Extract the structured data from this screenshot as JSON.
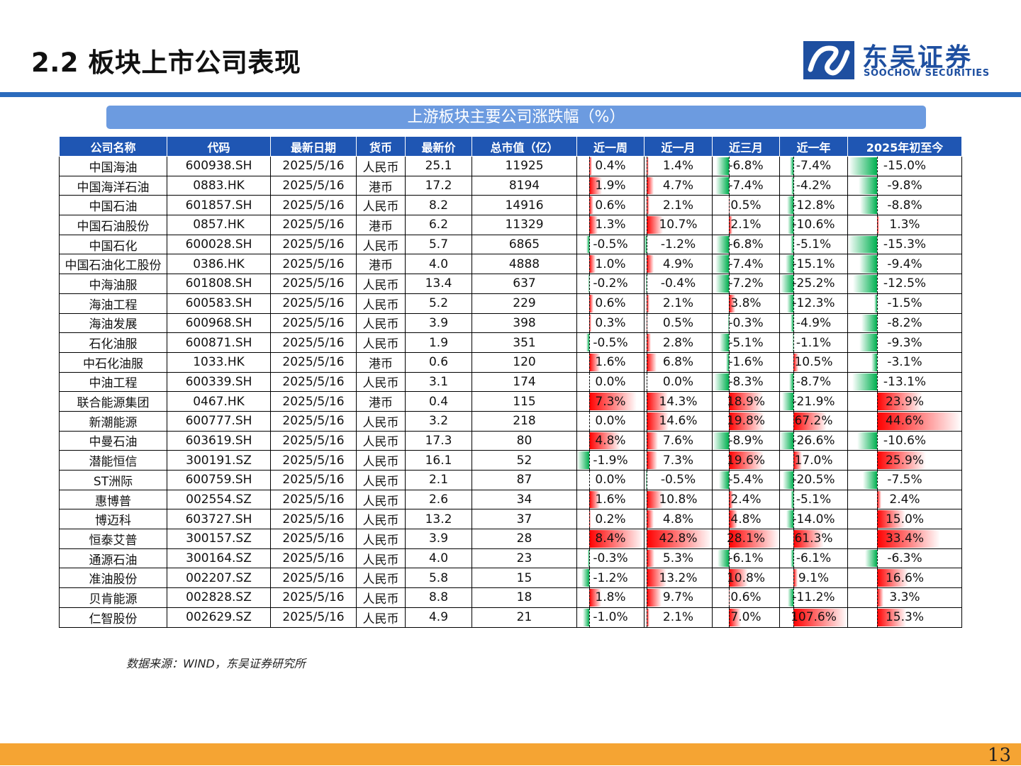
{
  "page": {
    "title": "2.2 板块上市公司表现",
    "logo_cn": "东吴证券",
    "logo_en": "SOOCHOW SECURITIES",
    "banner": "上游板块主要公司涨跌幅（%）",
    "source": "数据来源：WIND，东吴证券研究所",
    "page_number": "13"
  },
  "colors": {
    "header_bg": "#1f56b3",
    "banner_bg": "#6c9be0",
    "top_line": "#2b6bbd",
    "footer": "#f5a433",
    "positive_bar": "#ff0000",
    "negative_bar": "#00b050"
  },
  "table": {
    "headers": [
      "公司名称",
      "代码",
      "最新日期",
      "货币",
      "最新价",
      "总市值（亿）",
      "近一周",
      "近一月",
      "近三月",
      "近一年",
      "2025年初至今"
    ],
    "rows": [
      [
        "中国海油",
        "600938.SH",
        "2025/5/16",
        "人民币",
        "25.1",
        "11925",
        "0.4%",
        "1.4%",
        "-6.8%",
        "-7.4%",
        "-15.0%"
      ],
      [
        "中国海洋石油",
        "0883.HK",
        "2025/5/16",
        "港币",
        "17.2",
        "8194",
        "1.9%",
        "4.7%",
        "-7.4%",
        "-4.2%",
        "-9.8%"
      ],
      [
        "中国石油",
        "601857.SH",
        "2025/5/16",
        "人民币",
        "8.2",
        "14916",
        "0.6%",
        "2.1%",
        "0.5%",
        "-12.8%",
        "-8.8%"
      ],
      [
        "中国石油股份",
        "0857.HK",
        "2025/5/16",
        "港币",
        "6.2",
        "11329",
        "1.3%",
        "10.7%",
        "2.1%",
        "-10.6%",
        "1.3%"
      ],
      [
        "中国石化",
        "600028.SH",
        "2025/5/16",
        "人民币",
        "5.7",
        "6865",
        "-0.5%",
        "-1.2%",
        "-6.8%",
        "-5.1%",
        "-15.3%"
      ],
      [
        "中国石油化工股份",
        "0386.HK",
        "2025/5/16",
        "港币",
        "4.0",
        "4888",
        "1.0%",
        "4.9%",
        "-7.4%",
        "-15.1%",
        "-9.4%"
      ],
      [
        "中海油服",
        "601808.SH",
        "2025/5/16",
        "人民币",
        "13.4",
        "637",
        "-0.2%",
        "-0.4%",
        "-7.2%",
        "-25.2%",
        "-12.5%"
      ],
      [
        "海油工程",
        "600583.SH",
        "2025/5/16",
        "人民币",
        "5.2",
        "229",
        "0.6%",
        "2.1%",
        "3.8%",
        "-12.3%",
        "-1.5%"
      ],
      [
        "海油发展",
        "600968.SH",
        "2025/5/16",
        "人民币",
        "3.9",
        "398",
        "0.3%",
        "0.5%",
        "-0.3%",
        "-4.9%",
        "-8.2%"
      ],
      [
        "石化油服",
        "600871.SH",
        "2025/5/16",
        "人民币",
        "1.9",
        "351",
        "-0.5%",
        "2.8%",
        "-5.1%",
        "-1.1%",
        "-9.3%"
      ],
      [
        "中石化油服",
        "1033.HK",
        "2025/5/16",
        "港币",
        "0.6",
        "120",
        "1.6%",
        "6.8%",
        "-1.6%",
        "10.5%",
        "-3.1%"
      ],
      [
        "中油工程",
        "600339.SH",
        "2025/5/16",
        "人民币",
        "3.1",
        "174",
        "0.0%",
        "0.0%",
        "-8.3%",
        "-8.7%",
        "-13.1%"
      ],
      [
        "联合能源集团",
        "0467.HK",
        "2025/5/16",
        "港币",
        "0.4",
        "115",
        "7.3%",
        "14.3%",
        "18.9%",
        "-21.9%",
        "23.9%"
      ],
      [
        "新潮能源",
        "600777.SH",
        "2025/5/16",
        "人民币",
        "3.2",
        "218",
        "0.0%",
        "14.6%",
        "19.8%",
        "67.2%",
        "44.6%"
      ],
      [
        "中曼石油",
        "603619.SH",
        "2025/5/16",
        "人民币",
        "17.3",
        "80",
        "4.8%",
        "7.6%",
        "-8.9%",
        "-26.6%",
        "-10.6%"
      ],
      [
        "潜能恒信",
        "300191.SZ",
        "2025/5/16",
        "人民币",
        "16.1",
        "52",
        "-1.9%",
        "7.3%",
        "19.6%",
        "17.0%",
        "25.9%"
      ],
      [
        "ST洲际",
        "600759.SH",
        "2025/5/16",
        "人民币",
        "2.1",
        "87",
        "0.0%",
        "-0.5%",
        "-5.4%",
        "-20.5%",
        "-7.5%"
      ],
      [
        "惠博普",
        "002554.SZ",
        "2025/5/16",
        "人民币",
        "2.6",
        "34",
        "1.6%",
        "10.8%",
        "2.4%",
        "-5.1%",
        "2.4%"
      ],
      [
        "博迈科",
        "603727.SH",
        "2025/5/16",
        "人民币",
        "13.2",
        "37",
        "0.2%",
        "4.8%",
        "4.8%",
        "-14.0%",
        "15.0%"
      ],
      [
        "恒泰艾普",
        "300157.SZ",
        "2025/5/16",
        "人民币",
        "3.9",
        "28",
        "8.4%",
        "42.8%",
        "28.1%",
        "61.3%",
        "33.4%"
      ],
      [
        "通源石油",
        "300164.SZ",
        "2025/5/16",
        "人民币",
        "4.0",
        "23",
        "-0.3%",
        "5.3%",
        "-6.1%",
        "-6.1%",
        "-6.3%"
      ],
      [
        "准油股份",
        "002207.SZ",
        "2025/5/16",
        "人民币",
        "5.8",
        "15",
        "-1.2%",
        "13.2%",
        "10.8%",
        "9.1%",
        "16.6%"
      ],
      [
        "贝肯能源",
        "002828.SZ",
        "2025/5/16",
        "人民币",
        "8.8",
        "18",
        "1.8%",
        "9.7%",
        "0.6%",
        "-11.2%",
        "3.3%"
      ],
      [
        "仁智股份",
        "002629.SZ",
        "2025/5/16",
        "人民币",
        "4.9",
        "21",
        "-1.0%",
        "2.1%",
        "7.0%",
        "107.6%",
        "15.3%"
      ]
    ]
  }
}
